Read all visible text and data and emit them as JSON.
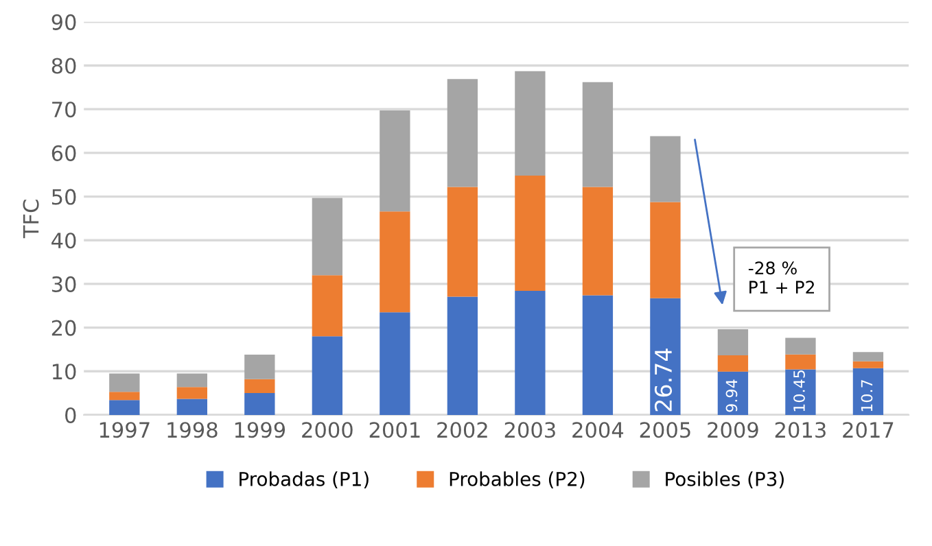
{
  "chart_data": {
    "type": "bar",
    "stacked": true,
    "ylabel": "TFC",
    "categories": [
      "1997",
      "1998",
      "1999",
      "2000",
      "2001",
      "2002",
      "2003",
      "2004",
      "2005",
      "2009",
      "2013",
      "2017"
    ],
    "series": [
      {
        "name": "Probadas (P1)",
        "color": "#4472c4",
        "values": [
          3.4,
          3.7,
          5.0,
          18.0,
          23.5,
          27.1,
          28.4,
          27.4,
          26.74,
          9.94,
          10.45,
          10.7
        ],
        "value_labels": [
          null,
          null,
          null,
          null,
          null,
          null,
          null,
          null,
          "26.74",
          "9.94",
          "10.45",
          "10.7"
        ]
      },
      {
        "name": "Probables (P2)",
        "color": "#ed7d31",
        "values": [
          1.9,
          2.7,
          3.2,
          14.0,
          23.1,
          25.1,
          26.4,
          24.8,
          22.0,
          3.7,
          3.4,
          1.6
        ]
      },
      {
        "name": "Posibles (P3)",
        "color": "#a5a5a5",
        "values": [
          4.2,
          3.1,
          5.6,
          17.7,
          23.1,
          24.7,
          23.9,
          24.0,
          15.1,
          6.0,
          3.8,
          2.1
        ]
      }
    ],
    "ylim": [
      0,
      90
    ],
    "yticks": [
      0,
      10,
      20,
      30,
      40,
      50,
      60,
      70,
      80,
      90
    ],
    "grid": "y",
    "legend": "bottom",
    "annotations": [
      "-28 %\nP1 + P2"
    ]
  }
}
